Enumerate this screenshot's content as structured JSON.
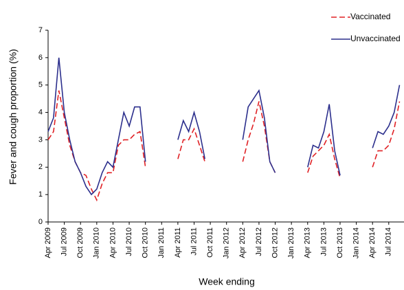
{
  "chart_data": {
    "type": "line",
    "y_label": "Fever and cough proportion (%)",
    "x_label": "Week ending",
    "categories": [
      "Apr 2009",
      null,
      null,
      "Jul 2009",
      null,
      null,
      "Oct 2009",
      null,
      null,
      "Jan 2010",
      null,
      null,
      "Apr 2010",
      null,
      null,
      "Jul 2010",
      null,
      null,
      "Oct 2010",
      null,
      null,
      "Jan 2011",
      null,
      null,
      "Apr 2011",
      null,
      null,
      "Jul 2011",
      null,
      null,
      "Oct 2011",
      null,
      null,
      "Jan 2012",
      null,
      null,
      "Apr 2012",
      null,
      null,
      "Jul 2012",
      null,
      null,
      "Oct 2012",
      null,
      null,
      "Jan 2013",
      null,
      null,
      "Apr 2013",
      null,
      null,
      "Jul 2013",
      null,
      null,
      "Oct 2013",
      null,
      null,
      "Jan 2014",
      null,
      null,
      "Apr 2014",
      null,
      null,
      "Jul 2014",
      null,
      null
    ],
    "series": [
      {
        "name": "Vaccinated",
        "color": "#e02024",
        "dash": true,
        "values": [
          3.0,
          3.3,
          4.8,
          3.8,
          2.8,
          2.2,
          1.8,
          1.7,
          1.2,
          0.8,
          1.4,
          1.8,
          1.8,
          2.8,
          3.0,
          3.0,
          3.2,
          3.3,
          2.0,
          null,
          null,
          null,
          null,
          null,
          2.3,
          3.0,
          3.0,
          3.4,
          2.8,
          2.2,
          null,
          null,
          null,
          null,
          null,
          null,
          2.2,
          3.0,
          3.6,
          4.4,
          3.5,
          2.2,
          1.8,
          null,
          null,
          null,
          null,
          null,
          1.8,
          2.4,
          2.6,
          2.8,
          3.2,
          2.3,
          1.6,
          null,
          null,
          null,
          null,
          null,
          2.0,
          2.6,
          2.6,
          2.8,
          3.4,
          4.4
        ]
      },
      {
        "name": "Unvaccinated",
        "color": "#2b2e8c",
        "dash": false,
        "values": [
          3.3,
          3.8,
          6.0,
          4.0,
          3.0,
          2.2,
          1.8,
          1.3,
          1.0,
          1.2,
          1.8,
          2.2,
          2.0,
          3.0,
          4.0,
          3.5,
          4.2,
          4.2,
          2.2,
          null,
          null,
          null,
          null,
          null,
          3.0,
          3.7,
          3.3,
          4.0,
          3.3,
          2.3,
          null,
          null,
          null,
          null,
          null,
          null,
          3.0,
          4.2,
          4.5,
          4.8,
          3.8,
          2.2,
          1.8,
          null,
          null,
          null,
          null,
          null,
          2.0,
          2.8,
          2.7,
          3.3,
          4.3,
          2.6,
          1.7,
          null,
          null,
          null,
          null,
          null,
          2.7,
          3.3,
          3.2,
          3.5,
          4.0,
          5.0
        ]
      }
    ],
    "ylim": [
      0,
      7
    ],
    "yticks": [
      0,
      1,
      2,
      3,
      4,
      5,
      6,
      7
    ],
    "grid": false,
    "legend": "top-right"
  }
}
